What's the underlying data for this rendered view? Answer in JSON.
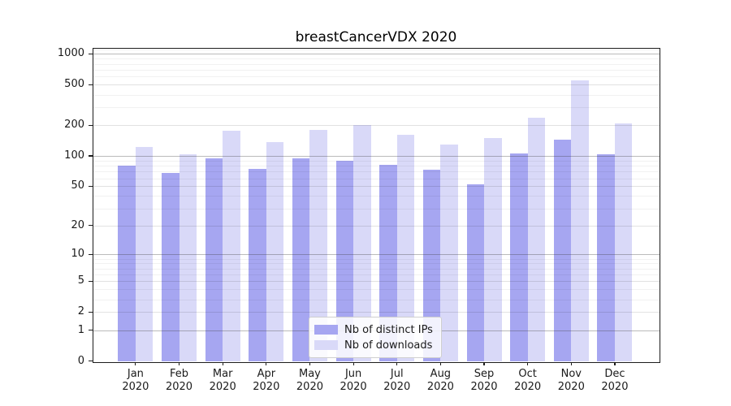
{
  "title": "breastCancerVDX 2020",
  "chart_data": {
    "type": "bar",
    "title": "breastCancerVDX 2020",
    "categories": [
      "Jan 2020",
      "Feb 2020",
      "Mar 2020",
      "Apr 2020",
      "May 2020",
      "Jun 2020",
      "Jul 2020",
      "Aug 2020",
      "Sep 2020",
      "Oct 2020",
      "Nov 2020",
      "Dec 2020"
    ],
    "series": [
      {
        "name": "Nb of distinct IPs",
        "color": "#a6a6f1",
        "values": [
          80,
          68,
          95,
          74,
          94,
          89,
          81,
          73,
          52,
          105,
          145,
          103
        ]
      },
      {
        "name": "Nb of downloads",
        "color": "#d9d9f8",
        "values": [
          123,
          104,
          178,
          136,
          180,
          200,
          160,
          130,
          150,
          237,
          555,
          210
        ]
      }
    ],
    "xlabel": "",
    "ylabel": "",
    "yscale": "log10(1+y)",
    "ylim": [
      0,
      1280
    ],
    "yticks": [
      1000,
      500,
      200,
      100,
      50,
      20,
      10,
      5,
      2,
      1,
      0
    ],
    "grid": "horizontal, major and minor",
    "legend_position": "lower center"
  },
  "colors": {
    "background": "#ffffff",
    "spine": "#1c1c1c",
    "bar_distinct_ips": "#a6a6f1",
    "bar_downloads": "#d9d9f8",
    "grid_major": "rgba(60,60,60,0.35)",
    "grid_sub": "rgba(0,0,0,0.115)",
    "grid_minor": "rgba(0,0,0,0.055)",
    "tick_text": "#1a1a1a"
  }
}
